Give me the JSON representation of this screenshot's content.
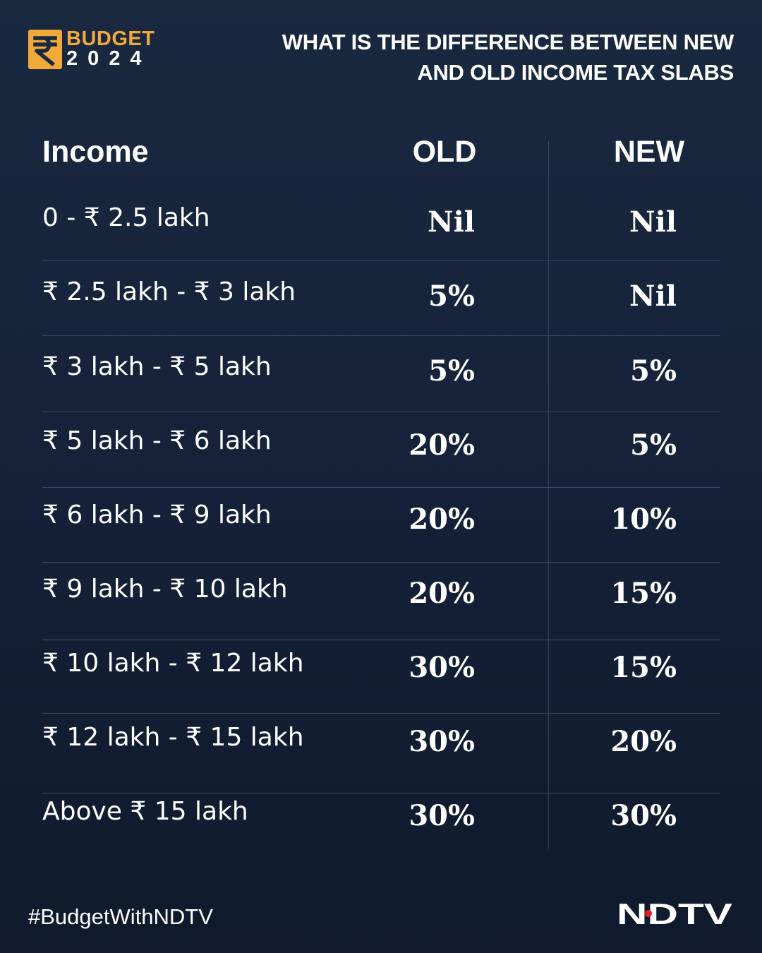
{
  "header": {
    "logo_word": "BUDGET",
    "logo_year": "2024",
    "headline_line1": "WHAT IS THE DIFFERENCE BETWEEN NEW",
    "headline_line2": "AND OLD INCOME TAX SLABS"
  },
  "table": {
    "col_income": "Income",
    "col_old": "OLD",
    "col_new": "NEW",
    "rows": [
      {
        "income": "0 - ₹ 2.5 lakh",
        "old": "Nil",
        "new": "Nil"
      },
      {
        "income": "₹ 2.5 lakh - ₹ 3 lakh",
        "old": "5%",
        "new": "Nil"
      },
      {
        "income": "₹ 3 lakh - ₹ 5 lakh",
        "old": "5%",
        "new": "5%"
      },
      {
        "income": "₹ 5 lakh - ₹ 6 lakh",
        "old": "20%",
        "new": "5%"
      },
      {
        "income": "₹ 6 lakh - ₹ 9 lakh",
        "old": "20%",
        "new": "10%"
      },
      {
        "income": "₹ 9 lakh - ₹ 10 lakh",
        "old": "20%",
        "new": "15%"
      },
      {
        "income": "₹ 10 lakh - ₹ 12 lakh",
        "old": "30%",
        "new": "15%"
      },
      {
        "income": "₹ 12 lakh - ₹ 15 lakh",
        "old": "30%",
        "new": "20%"
      },
      {
        "income": "Above ₹ 15 lakh",
        "old": "30%",
        "new": "30%"
      }
    ]
  },
  "footer": {
    "hashtag": "#BudgetWithNDTV",
    "brand": "NDTV"
  },
  "colors": {
    "background": "#15223a",
    "accent": "#f2a93b",
    "text": "#ffffff",
    "brand_dot": "#e02020"
  },
  "icons": {
    "logo_mark": "rupee-icon"
  }
}
